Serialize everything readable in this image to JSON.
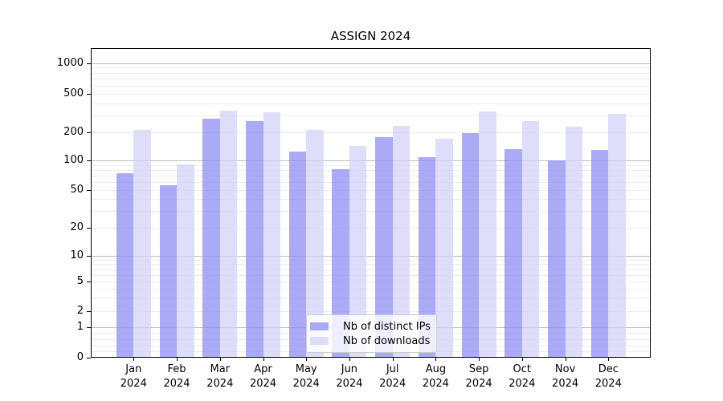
{
  "chart_data": {
    "type": "bar",
    "title": "ASSIGN 2024",
    "year": "2024",
    "months": [
      "Jan",
      "Feb",
      "Mar",
      "Apr",
      "May",
      "Jun",
      "Jul",
      "Aug",
      "Sep",
      "Oct",
      "Nov",
      "Dec"
    ],
    "categories": [
      "Jan 2024",
      "Feb 2024",
      "Mar 2024",
      "Apr 2024",
      "May 2024",
      "Jun 2024",
      "Jul 2024",
      "Aug 2024",
      "Sep 2024",
      "Oct 2024",
      "Nov 2024",
      "Dec 2024"
    ],
    "series": [
      {
        "name": "Nb of distinct IPs",
        "color": "rgba(142,142,243,0.75)",
        "values": [
          76,
          57,
          280,
          267,
          126,
          83,
          181,
          111,
          200,
          134,
          103,
          133
        ]
      },
      {
        "name": "Nb of downloads",
        "color": "rgba(211,211,248,0.75)",
        "values": [
          215,
          93,
          344,
          327,
          215,
          146,
          237,
          173,
          333,
          268,
          232,
          314
        ]
      }
    ],
    "xlabel": "",
    "ylabel": "",
    "y_scale": "symlog",
    "y_ticks": [
      0,
      1,
      2,
      5,
      10,
      20,
      50,
      100,
      200,
      500,
      1000
    ],
    "ylim": [
      0,
      1330
    ],
    "grid": true,
    "grid_major_color": "#bdbdbd",
    "grid_minor_color": "#ececec",
    "legend_position": "lower center"
  }
}
